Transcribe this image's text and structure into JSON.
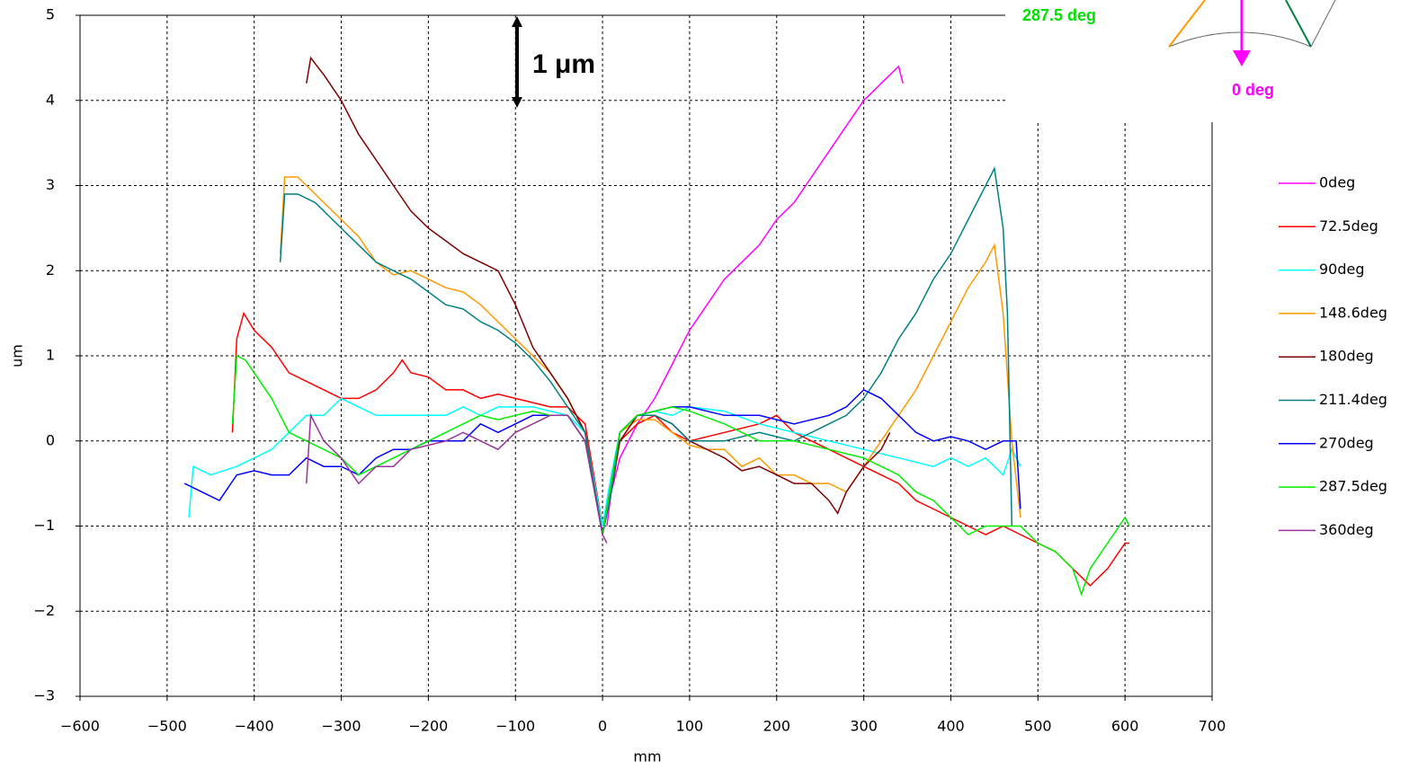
{
  "chart_data": {
    "type": "line",
    "xlabel": "mm",
    "ylabel": "um",
    "xlim": [
      -600,
      700
    ],
    "ylim": [
      -3,
      5
    ],
    "xticks": [
      {
        "value": -600,
        "label": "−600"
      },
      {
        "value": -500,
        "label": "−500"
      },
      {
        "value": -400,
        "label": "−400"
      },
      {
        "value": -300,
        "label": "−300"
      },
      {
        "value": -200,
        "label": "−200"
      },
      {
        "value": -100,
        "label": "−100"
      },
      0,
      100,
      200,
      300,
      400,
      500,
      600,
      700
    ],
    "yticks": [
      {
        "value": -3,
        "label": "−3"
      },
      {
        "value": -2,
        "label": "−2"
      },
      {
        "value": -1,
        "label": "−1"
      },
      0,
      1,
      2,
      3,
      4,
      5
    ],
    "grid": true,
    "legend_position": "right",
    "annotations": [
      "1 μm",
      "287.5 deg",
      "0 deg"
    ],
    "series": [
      {
        "name": "0deg",
        "color": "#ff00ff",
        "x": [
          5,
          10,
          20,
          40,
          60,
          80,
          100,
          120,
          140,
          160,
          180,
          200,
          220,
          240,
          260,
          280,
          300,
          320,
          340,
          345
        ],
        "values": [
          -1.0,
          -0.6,
          -0.2,
          0.2,
          0.5,
          0.9,
          1.3,
          1.6,
          1.9,
          2.1,
          2.3,
          2.6,
          2.8,
          3.1,
          3.4,
          3.7,
          4.0,
          4.2,
          4.4,
          4.2
        ]
      },
      {
        "name": "72.5deg",
        "color": "#ff0000",
        "x": [
          -425,
          -420,
          -412,
          -400,
          -380,
          -360,
          -340,
          -320,
          -300,
          -280,
          -260,
          -240,
          -230,
          -220,
          -200,
          -180,
          -160,
          -140,
          -120,
          -100,
          -80,
          -60,
          -40,
          -20,
          0,
          10,
          20,
          40,
          60,
          80,
          100,
          140,
          180,
          200,
          220,
          240,
          260,
          280,
          300,
          320,
          340,
          360,
          380,
          400,
          420,
          440,
          460,
          480,
          500,
          520,
          540,
          560,
          580,
          600,
          605
        ],
        "values": [
          0.1,
          1.2,
          1.5,
          1.3,
          1.1,
          0.8,
          0.7,
          0.6,
          0.5,
          0.5,
          0.6,
          0.8,
          0.95,
          0.8,
          0.75,
          0.6,
          0.6,
          0.5,
          0.55,
          0.5,
          0.45,
          0.4,
          0.4,
          0.2,
          -1.0,
          -0.5,
          0.0,
          0.2,
          0.3,
          0.1,
          0.0,
          0.1,
          0.2,
          0.3,
          0.1,
          0.0,
          -0.1,
          -0.2,
          -0.3,
          -0.4,
          -0.5,
          -0.7,
          -0.8,
          -0.9,
          -1.0,
          -1.1,
          -1.0,
          -1.1,
          -1.2,
          -1.3,
          -1.5,
          -1.7,
          -1.5,
          -1.2,
          -1.2
        ]
      },
      {
        "name": "90deg",
        "color": "#00ffff",
        "x": [
          -475,
          -470,
          -450,
          -420,
          -400,
          -380,
          -360,
          -340,
          -320,
          -300,
          -280,
          -260,
          -240,
          -220,
          -200,
          -180,
          -160,
          -140,
          -120,
          -100,
          -80,
          -60,
          -40,
          -20,
          0,
          10,
          20,
          40,
          60,
          80,
          100,
          140,
          180,
          220,
          260,
          300,
          340,
          380,
          400,
          420,
          440,
          460,
          470,
          480
        ],
        "values": [
          -0.9,
          -0.3,
          -0.4,
          -0.3,
          -0.2,
          -0.1,
          0.1,
          0.3,
          0.3,
          0.5,
          0.4,
          0.3,
          0.3,
          0.3,
          0.3,
          0.3,
          0.4,
          0.3,
          0.4,
          0.4,
          0.4,
          0.35,
          0.3,
          0.1,
          -1.0,
          -0.4,
          0.1,
          0.3,
          0.35,
          0.3,
          0.4,
          0.35,
          0.2,
          0.1,
          0.0,
          -0.1,
          -0.2,
          -0.3,
          -0.2,
          -0.3,
          -0.2,
          -0.4,
          -0.1,
          -0.3
        ]
      },
      {
        "name": "148.6deg",
        "color": "#ff9900",
        "x": [
          -370,
          -365,
          -350,
          -330,
          -300,
          -280,
          -260,
          -240,
          -220,
          -200,
          -180,
          -160,
          -140,
          -120,
          -100,
          -80,
          -60,
          -40,
          -20,
          0,
          10,
          20,
          40,
          60,
          80,
          100,
          120,
          140,
          160,
          180,
          200,
          220,
          240,
          260,
          280,
          300,
          320,
          340,
          360,
          380,
          400,
          420,
          440,
          450,
          460,
          470,
          480
        ],
        "values": [
          2.2,
          3.1,
          3.1,
          2.9,
          2.6,
          2.4,
          2.1,
          1.95,
          2.0,
          1.9,
          1.8,
          1.75,
          1.6,
          1.4,
          1.2,
          1.0,
          0.8,
          0.5,
          0.1,
          -1.1,
          -0.5,
          0.1,
          0.25,
          0.25,
          0.1,
          -0.05,
          -0.1,
          -0.1,
          -0.3,
          -0.2,
          -0.4,
          -0.4,
          -0.5,
          -0.5,
          -0.6,
          -0.3,
          0.0,
          0.3,
          0.6,
          1.0,
          1.4,
          1.8,
          2.1,
          2.3,
          1.5,
          0.0,
          -0.9
        ]
      },
      {
        "name": "180deg",
        "color": "#800000",
        "x": [
          -340,
          -335,
          -320,
          -300,
          -280,
          -260,
          -240,
          -220,
          -200,
          -180,
          -160,
          -140,
          -120,
          -100,
          -80,
          -60,
          -40,
          -20,
          0,
          10,
          20,
          40,
          60,
          80,
          100,
          120,
          140,
          160,
          180,
          200,
          220,
          240,
          260,
          270,
          280,
          300,
          320,
          330
        ],
        "values": [
          4.2,
          4.5,
          4.3,
          4.0,
          3.6,
          3.3,
          3.0,
          2.7,
          2.5,
          2.35,
          2.2,
          2.1,
          2.0,
          1.6,
          1.1,
          0.8,
          0.5,
          0.1,
          -1.1,
          -0.6,
          0.0,
          0.3,
          0.3,
          0.2,
          0.0,
          -0.1,
          -0.2,
          -0.35,
          -0.3,
          -0.4,
          -0.5,
          -0.5,
          -0.7,
          -0.85,
          -0.6,
          -0.3,
          -0.1,
          0.1
        ]
      },
      {
        "name": "211.4deg",
        "color": "#008080",
        "x": [
          -370,
          -365,
          -350,
          -330,
          -300,
          -280,
          -260,
          -240,
          -220,
          -200,
          -180,
          -160,
          -140,
          -120,
          -100,
          -80,
          -60,
          -40,
          -20,
          0,
          10,
          20,
          40,
          60,
          80,
          100,
          140,
          180,
          220,
          260,
          280,
          300,
          320,
          340,
          360,
          380,
          400,
          420,
          440,
          450,
          460,
          465,
          470
        ],
        "values": [
          2.1,
          2.9,
          2.9,
          2.8,
          2.5,
          2.3,
          2.1,
          2.0,
          1.9,
          1.75,
          1.6,
          1.55,
          1.4,
          1.3,
          1.15,
          0.95,
          0.7,
          0.4,
          0.1,
          -1.1,
          -0.6,
          0.1,
          0.3,
          0.3,
          0.2,
          0.0,
          0.0,
          0.1,
          0.0,
          0.2,
          0.3,
          0.5,
          0.8,
          1.2,
          1.5,
          1.9,
          2.2,
          2.6,
          3.0,
          3.2,
          2.5,
          1.5,
          -1.0
        ]
      },
      {
        "name": "270deg",
        "color": "#0000ff",
        "x": [
          -480,
          -460,
          -440,
          -420,
          -400,
          -380,
          -360,
          -340,
          -320,
          -300,
          -280,
          -260,
          -240,
          -220,
          -200,
          -180,
          -160,
          -140,
          -120,
          -100,
          -80,
          -60,
          -40,
          -20,
          0,
          10,
          20,
          40,
          60,
          80,
          100,
          140,
          180,
          220,
          260,
          280,
          300,
          320,
          340,
          360,
          380,
          400,
          420,
          440,
          460,
          475,
          480
        ],
        "values": [
          -0.5,
          -0.6,
          -0.7,
          -0.4,
          -0.35,
          -0.4,
          -0.4,
          -0.2,
          -0.3,
          -0.3,
          -0.4,
          -0.2,
          -0.1,
          -0.1,
          0.0,
          0.0,
          0.0,
          0.2,
          0.1,
          0.2,
          0.3,
          0.3,
          0.3,
          0.0,
          -1.1,
          -0.5,
          0.1,
          0.3,
          0.35,
          0.4,
          0.4,
          0.3,
          0.3,
          0.2,
          0.3,
          0.4,
          0.6,
          0.5,
          0.3,
          0.1,
          0.0,
          0.05,
          0.0,
          -0.1,
          0.0,
          0.0,
          -0.8
        ]
      },
      {
        "name": "287.5deg",
        "color": "#00ee00",
        "x": [
          -425,
          -420,
          -410,
          -400,
          -380,
          -360,
          -340,
          -320,
          -300,
          -280,
          -260,
          -240,
          -220,
          -200,
          -180,
          -160,
          -140,
          -120,
          -100,
          -80,
          -60,
          -40,
          -20,
          0,
          10,
          20,
          40,
          60,
          80,
          100,
          140,
          180,
          220,
          260,
          300,
          340,
          360,
          380,
          400,
          420,
          440,
          460,
          480,
          500,
          520,
          540,
          550,
          560,
          580,
          600,
          605
        ],
        "values": [
          0.2,
          1.0,
          0.95,
          0.8,
          0.5,
          0.1,
          0.0,
          -0.1,
          -0.2,
          -0.4,
          -0.3,
          -0.2,
          -0.1,
          0.0,
          0.1,
          0.2,
          0.3,
          0.25,
          0.3,
          0.35,
          0.3,
          0.3,
          0.0,
          -1.1,
          -0.5,
          0.1,
          0.3,
          0.35,
          0.4,
          0.35,
          0.2,
          0.0,
          0.0,
          -0.1,
          -0.2,
          -0.4,
          -0.6,
          -0.7,
          -0.9,
          -1.1,
          -1.0,
          -1.0,
          -1.0,
          -1.2,
          -1.3,
          -1.5,
          -1.8,
          -1.5,
          -1.2,
          -0.9,
          -1.0
        ]
      },
      {
        "name": "360deg",
        "color": "#993399",
        "x": [
          -340,
          -335,
          -320,
          -300,
          -280,
          -260,
          -240,
          -220,
          -200,
          -180,
          -160,
          -140,
          -120,
          -100,
          -80,
          -60,
          -40,
          -20,
          0,
          5
        ],
        "values": [
          -0.5,
          0.3,
          0.0,
          -0.2,
          -0.5,
          -0.3,
          -0.3,
          -0.1,
          -0.05,
          0.0,
          0.1,
          0.0,
          -0.1,
          0.1,
          0.2,
          0.3,
          0.3,
          0.0,
          -1.1,
          -1.2
        ]
      }
    ]
  }
}
